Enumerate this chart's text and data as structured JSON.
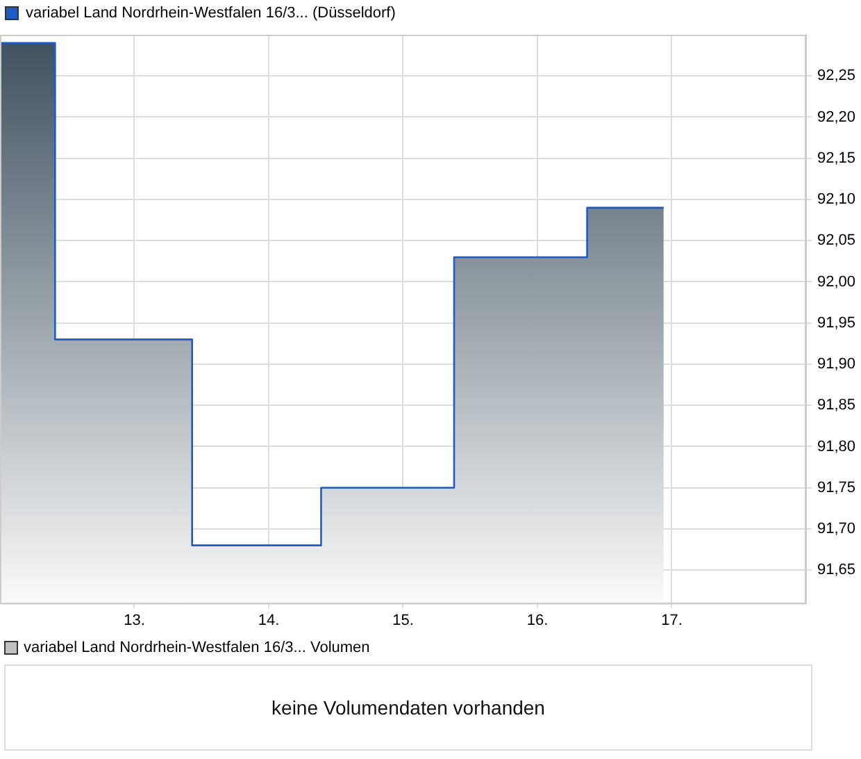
{
  "chart_data": [
    {
      "type": "area",
      "x": [
        12.0,
        12.41,
        12.41,
        13.43,
        13.43,
        14.39,
        14.39,
        15.38,
        15.38,
        16.37,
        16.37,
        16.94
      ],
      "series": [
        {
          "name": "variabel Land Nordrhein-Westfalen 16/3... (Düsseldorf)",
          "color": "#1f5bc6",
          "values": [
            92.29,
            92.29,
            91.93,
            91.93,
            91.68,
            91.68,
            91.75,
            91.75,
            92.03,
            92.03,
            92.09,
            92.09
          ]
        }
      ],
      "xlim": [
        12,
        18
      ],
      "xticks": [
        {
          "value": 13,
          "label": "13."
        },
        {
          "value": 14,
          "label": "14."
        },
        {
          "value": 15,
          "label": "15."
        },
        {
          "value": 16,
          "label": "16."
        },
        {
          "value": 17,
          "label": "17."
        }
      ],
      "ylim": [
        91.61,
        92.3
      ],
      "yticks": [
        {
          "value": 91.65,
          "label": "91,65"
        },
        {
          "value": 91.7,
          "label": "91,70"
        },
        {
          "value": 91.75,
          "label": "91,75"
        },
        {
          "value": 91.8,
          "label": "91,80"
        },
        {
          "value": 91.85,
          "label": "91,85"
        },
        {
          "value": 91.9,
          "label": "91,90"
        },
        {
          "value": 91.95,
          "label": "91,95"
        },
        {
          "value": 92.0,
          "label": "92,00"
        },
        {
          "value": 92.05,
          "label": "92,05"
        },
        {
          "value": 92.1,
          "label": "92,10"
        },
        {
          "value": 92.15,
          "label": "92,15"
        },
        {
          "value": 92.2,
          "label": "92,20"
        },
        {
          "value": 92.25,
          "label": "92,25"
        }
      ],
      "grid": true,
      "legend": "top left"
    },
    {
      "type": "other",
      "series": [
        {
          "name": "variabel Land Nordrhein-Westfalen 16/3... Volumen",
          "color": "#c0c0c0"
        }
      ],
      "annotations": [
        "keine Volumendaten vorhanden"
      ],
      "legend": "top left"
    }
  ]
}
